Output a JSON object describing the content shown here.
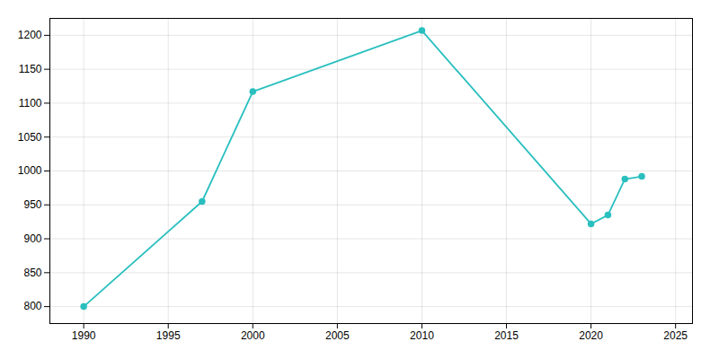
{
  "chart_data": {
    "type": "line",
    "x": [
      1990,
      1997,
      2000,
      2010,
      2020,
      2021,
      2022,
      2023
    ],
    "values": [
      800,
      955,
      1117,
      1207,
      922,
      935,
      988,
      992
    ],
    "color": "#2abfbf",
    "marker": "o",
    "xlim": [
      1988,
      2026
    ],
    "ylim": [
      775,
      1225
    ],
    "xticks": [
      1990,
      1995,
      2000,
      2005,
      2010,
      2015,
      2020,
      2025
    ],
    "yticks": [
      800,
      850,
      900,
      950,
      1000,
      1050,
      1100,
      1150,
      1200
    ],
    "grid": true
  }
}
